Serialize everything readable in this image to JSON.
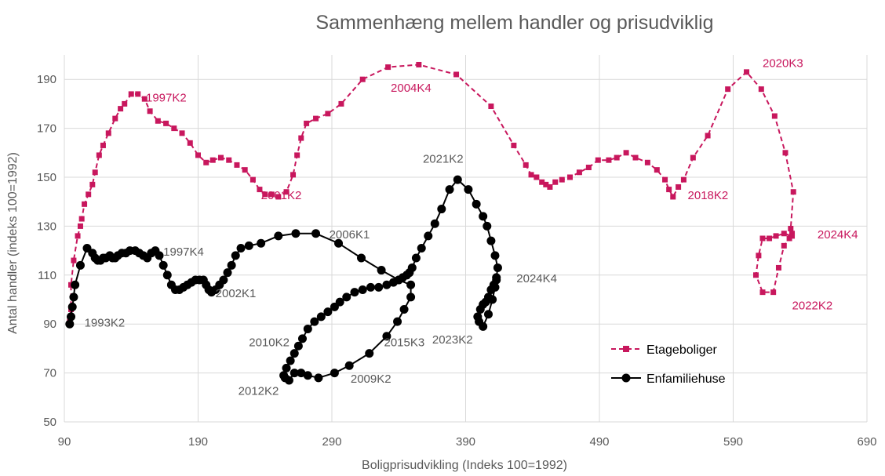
{
  "chart_data": {
    "type": "scatter",
    "title": "Sammenhæng mellem handler og prisudviklig",
    "xlabel": "Boligprisudvikling (Indeks 100=1992)",
    "ylabel": "Antal handler (indeks 100=1992)",
    "xlim": [
      90,
      690
    ],
    "ylim": [
      50,
      200
    ],
    "xticks": [
      90,
      190,
      290,
      390,
      490,
      590,
      690
    ],
    "yticks": [
      50,
      70,
      90,
      110,
      130,
      150,
      170,
      190
    ],
    "grid": true,
    "legend_position": "bottom-right",
    "series": [
      {
        "name": "Etageboliger",
        "color": "#c8175d",
        "marker": "square",
        "line": "dashed",
        "points": [
          [
            94,
            91
          ],
          [
            95,
            96
          ],
          [
            95,
            106
          ],
          [
            97,
            116
          ],
          [
            100,
            126
          ],
          [
            102,
            130
          ],
          [
            103,
            133
          ],
          [
            105,
            139
          ],
          [
            108,
            143
          ],
          [
            111,
            147
          ],
          [
            113,
            152
          ],
          [
            116,
            159
          ],
          [
            119,
            163
          ],
          [
            123,
            168
          ],
          [
            128,
            174
          ],
          [
            132,
            178
          ],
          [
            135,
            180
          ],
          [
            140,
            184
          ],
          [
            145,
            184
          ],
          [
            150,
            182
          ],
          [
            154,
            177
          ],
          [
            160,
            173
          ],
          [
            166,
            172
          ],
          [
            172,
            170
          ],
          [
            178,
            168
          ],
          [
            184,
            164
          ],
          [
            190,
            159
          ],
          [
            196,
            156
          ],
          [
            201,
            157
          ],
          [
            207,
            158
          ],
          [
            213,
            157
          ],
          [
            219,
            155
          ],
          [
            225,
            153
          ],
          [
            231,
            149
          ],
          [
            236,
            145
          ],
          [
            240,
            143
          ],
          [
            245,
            143
          ],
          [
            250,
            142
          ],
          [
            256,
            144
          ],
          [
            261,
            151
          ],
          [
            264,
            159
          ],
          [
            267,
            166
          ],
          [
            271,
            172
          ],
          [
            278,
            174
          ],
          [
            287,
            176
          ],
          [
            297,
            180
          ],
          [
            313,
            190
          ],
          [
            332,
            195
          ],
          [
            355,
            196
          ],
          [
            383,
            192
          ],
          [
            409,
            179
          ],
          [
            426,
            163
          ],
          [
            435,
            155
          ],
          [
            439,
            151
          ],
          [
            443,
            150
          ],
          [
            447,
            148
          ],
          [
            450,
            147
          ],
          [
            453,
            146
          ],
          [
            457,
            148
          ],
          [
            462,
            149
          ],
          [
            468,
            150
          ],
          [
            475,
            152
          ],
          [
            482,
            154
          ],
          [
            489,
            157
          ],
          [
            497,
            157
          ],
          [
            503,
            158
          ],
          [
            510,
            160
          ],
          [
            517,
            158
          ],
          [
            526,
            156
          ],
          [
            533,
            153
          ],
          [
            539,
            149
          ],
          [
            542,
            145
          ],
          [
            545,
            142
          ],
          [
            549,
            146
          ],
          [
            553,
            149
          ],
          [
            560,
            158
          ],
          [
            571,
            167
          ],
          [
            586,
            186
          ],
          [
            600,
            193
          ],
          [
            611,
            186
          ],
          [
            621,
            175
          ],
          [
            629,
            160
          ],
          [
            635,
            144
          ],
          [
            633,
            129
          ],
          [
            634,
            127
          ],
          [
            632,
            125
          ],
          [
            628,
            122
          ],
          [
            624,
            113
          ],
          [
            620,
            103
          ],
          [
            612,
            103
          ],
          [
            607,
            110
          ],
          [
            609,
            118
          ],
          [
            612,
            125
          ],
          [
            617,
            125
          ],
          [
            622,
            126
          ],
          [
            628,
            127
          ],
          [
            634,
            126
          ]
        ]
      },
      {
        "name": "Enfamiliehuse",
        "color": "#000000",
        "marker": "circle",
        "line": "solid",
        "points": [
          [
            94,
            90
          ],
          [
            95,
            93
          ],
          [
            96,
            97
          ],
          [
            97,
            101
          ],
          [
            98,
            106
          ],
          [
            102,
            114
          ],
          [
            107,
            121
          ],
          [
            111,
            119
          ],
          [
            113,
            117
          ],
          [
            115,
            116
          ],
          [
            117,
            116
          ],
          [
            119,
            117
          ],
          [
            121,
            117
          ],
          [
            124,
            118
          ],
          [
            126,
            117
          ],
          [
            128,
            117
          ],
          [
            130,
            118
          ],
          [
            133,
            119
          ],
          [
            136,
            119
          ],
          [
            139,
            120
          ],
          [
            143,
            120
          ],
          [
            146,
            119
          ],
          [
            149,
            118
          ],
          [
            152,
            117
          ],
          [
            155,
            119
          ],
          [
            158,
            120
          ],
          [
            161,
            118
          ],
          [
            164,
            114
          ],
          [
            167,
            110
          ],
          [
            170,
            106
          ],
          [
            173,
            104
          ],
          [
            176,
            104
          ],
          [
            179,
            105
          ],
          [
            182,
            106
          ],
          [
            185,
            107
          ],
          [
            188,
            108
          ],
          [
            191,
            108
          ],
          [
            194,
            108
          ],
          [
            196,
            106
          ],
          [
            198,
            104
          ],
          [
            200,
            103
          ],
          [
            203,
            104
          ],
          [
            206,
            106
          ],
          [
            209,
            108
          ],
          [
            212,
            111
          ],
          [
            215,
            114
          ],
          [
            218,
            118
          ],
          [
            222,
            121
          ],
          [
            228,
            122
          ],
          [
            237,
            123
          ],
          [
            250,
            126
          ],
          [
            263,
            127
          ],
          [
            278,
            127
          ],
          [
            295,
            123
          ],
          [
            312,
            117
          ],
          [
            327,
            112
          ],
          [
            340,
            108
          ],
          [
            349,
            106
          ],
          [
            349,
            101
          ],
          [
            344,
            96
          ],
          [
            339,
            91
          ],
          [
            331,
            85
          ],
          [
            318,
            78
          ],
          [
            303,
            73
          ],
          [
            292,
            70
          ],
          [
            280,
            68
          ],
          [
            272,
            69
          ],
          [
            267,
            70
          ],
          [
            262,
            70
          ],
          [
            258,
            67
          ],
          [
            255,
            68
          ],
          [
            254,
            69
          ],
          [
            256,
            72
          ],
          [
            259,
            75
          ],
          [
            262,
            78
          ],
          [
            265,
            81
          ],
          [
            268,
            84
          ],
          [
            272,
            88
          ],
          [
            277,
            91
          ],
          [
            282,
            93
          ],
          [
            287,
            95
          ],
          [
            292,
            97
          ],
          [
            296,
            99
          ],
          [
            301,
            101
          ],
          [
            307,
            103
          ],
          [
            313,
            104
          ],
          [
            319,
            105
          ],
          [
            325,
            105
          ],
          [
            331,
            106
          ],
          [
            336,
            107
          ],
          [
            340,
            108
          ],
          [
            343,
            109
          ],
          [
            346,
            110
          ],
          [
            348,
            111
          ],
          [
            350,
            113
          ],
          [
            353,
            117
          ],
          [
            357,
            121
          ],
          [
            362,
            126
          ],
          [
            367,
            131
          ],
          [
            372,
            137
          ],
          [
            378,
            145
          ],
          [
            384,
            149
          ],
          [
            392,
            145
          ],
          [
            398,
            139
          ],
          [
            403,
            134
          ],
          [
            406,
            130
          ],
          [
            409,
            124
          ],
          [
            412,
            118
          ],
          [
            414,
            113
          ],
          [
            413,
            109
          ],
          [
            412,
            105
          ],
          [
            410,
            100
          ],
          [
            407,
            94
          ],
          [
            403,
            89
          ],
          [
            400,
            91
          ],
          [
            399,
            93
          ],
          [
            401,
            96
          ],
          [
            403,
            98
          ],
          [
            405,
            99
          ],
          [
            407,
            101
          ],
          [
            409,
            104
          ],
          [
            411,
            106
          ],
          [
            413,
            108
          ]
        ]
      }
    ],
    "annotations": [
      {
        "text": "1997K2",
        "x": 151,
        "y": 181,
        "color": "#c8175d"
      },
      {
        "text": "2001K2",
        "x": 237,
        "y": 141,
        "color": "#c8175d"
      },
      {
        "text": "2004K4",
        "x": 334,
        "y": 185,
        "color": "#c8175d"
      },
      {
        "text": "2015K3",
        "x": 329,
        "y": 81,
        "color": "#595959"
      },
      {
        "text": "2018K2",
        "x": 556,
        "y": 141,
        "color": "#c8175d"
      },
      {
        "text": "2020K3",
        "x": 612,
        "y": 195,
        "color": "#c8175d"
      },
      {
        "text": "2024K4",
        "x": 653,
        "y": 125,
        "color": "#c8175d"
      },
      {
        "text": "2022K2",
        "x": 634,
        "y": 96,
        "color": "#c8175d"
      },
      {
        "text": "1997K4",
        "x": 164,
        "y": 118,
        "color": "#595959"
      },
      {
        "text": "1993K2",
        "x": 105,
        "y": 89,
        "color": "#595959"
      },
      {
        "text": "2002K1",
        "x": 203,
        "y": 101,
        "color": "#595959"
      },
      {
        "text": "2006K1",
        "x": 288,
        "y": 125,
        "color": "#595959"
      },
      {
        "text": "2010K2",
        "x": 228,
        "y": 81,
        "color": "#595959"
      },
      {
        "text": "2012K2",
        "x": 220,
        "y": 61,
        "color": "#595959"
      },
      {
        "text": "2009K2",
        "x": 304,
        "y": 66,
        "color": "#595959"
      },
      {
        "text": "2021K2",
        "x": 358,
        "y": 156,
        "color": "#595959"
      },
      {
        "text": "2023K2",
        "x": 365,
        "y": 82,
        "color": "#595959"
      },
      {
        "text": "2024K4",
        "x": 428,
        "y": 107,
        "color": "#595959"
      }
    ]
  }
}
